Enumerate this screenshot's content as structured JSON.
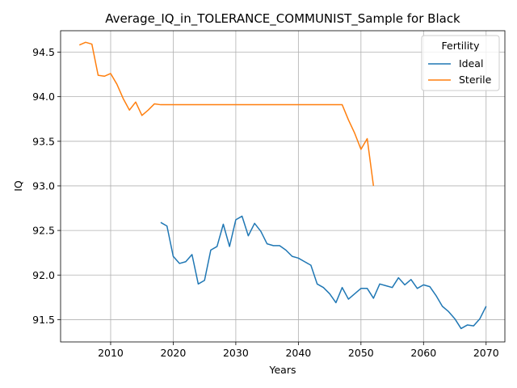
{
  "chart_data": {
    "type": "line",
    "title": "Average_IQ_in_TOLERANCE_COMMUNIST_Sample for Black",
    "xlabel": "Years",
    "ylabel": "IQ",
    "xlim": [
      2002,
      2073
    ],
    "ylim": [
      91.25,
      94.74
    ],
    "xticks": [
      2010,
      2020,
      2030,
      2040,
      2050,
      2060,
      2070
    ],
    "xtick_labels": [
      "2010",
      "2020",
      "2030",
      "2040",
      "2050",
      "2060",
      "2070"
    ],
    "yticks": [
      91.5,
      92.0,
      92.5,
      93.0,
      93.5,
      94.0,
      94.5
    ],
    "ytick_labels": [
      "91.5",
      "92.0",
      "92.5",
      "93.0",
      "93.5",
      "94.0",
      "94.5"
    ],
    "grid": true,
    "legend": {
      "title": "Fertility",
      "placement": "top-right"
    },
    "series": [
      {
        "name": "Ideal",
        "color": "#1f77b4",
        "x": [
          2018,
          2019,
          2020,
          2021,
          2022,
          2023,
          2024,
          2025,
          2026,
          2027,
          2028,
          2029,
          2030,
          2031,
          2032,
          2033,
          2034,
          2035,
          2036,
          2037,
          2038,
          2039,
          2040,
          2041,
          2042,
          2043,
          2044,
          2045,
          2046,
          2047,
          2048,
          2049,
          2050,
          2051,
          2052,
          2053,
          2054,
          2055,
          2056,
          2057,
          2058,
          2059,
          2060,
          2061,
          2062,
          2063,
          2064,
          2065,
          2066,
          2067,
          2068,
          2069,
          2070
        ],
        "y": [
          92.59,
          92.55,
          92.21,
          92.13,
          92.15,
          92.23,
          91.9,
          91.94,
          92.28,
          92.32,
          92.57,
          92.32,
          92.62,
          92.66,
          92.44,
          92.58,
          92.49,
          92.35,
          92.33,
          92.33,
          92.28,
          92.21,
          92.19,
          92.15,
          92.11,
          91.9,
          91.86,
          91.79,
          91.69,
          91.86,
          91.73,
          91.79,
          91.85,
          91.85,
          91.74,
          91.9,
          91.88,
          91.86,
          91.97,
          91.89,
          91.95,
          91.85,
          91.89,
          91.87,
          91.77,
          91.65,
          91.59,
          91.51,
          91.4,
          91.44,
          91.43,
          91.51,
          91.65
        ]
      },
      {
        "name": "Sterile",
        "color": "#ff7f0e",
        "x": [
          2005,
          2006,
          2007,
          2008,
          2009,
          2010,
          2011,
          2012,
          2013,
          2014,
          2015,
          2016,
          2017,
          2018,
          2019,
          2020,
          2021,
          2022,
          2023,
          2024,
          2025,
          2026,
          2027,
          2028,
          2029,
          2030,
          2031,
          2032,
          2033,
          2034,
          2035,
          2036,
          2037,
          2038,
          2039,
          2040,
          2041,
          2042,
          2043,
          2044,
          2045,
          2046,
          2047,
          2048,
          2049,
          2050,
          2051,
          2052
        ],
        "y": [
          94.58,
          94.61,
          94.59,
          94.24,
          94.23,
          94.26,
          94.14,
          93.98,
          93.85,
          93.94,
          93.79,
          93.85,
          93.92,
          93.91,
          93.91,
          93.91,
          93.91,
          93.91,
          93.91,
          93.91,
          93.91,
          93.91,
          93.91,
          93.91,
          93.91,
          93.91,
          93.91,
          93.91,
          93.91,
          93.91,
          93.91,
          93.91,
          93.91,
          93.91,
          93.91,
          93.91,
          93.91,
          93.91,
          93.91,
          93.91,
          93.91,
          93.91,
          93.91,
          93.74,
          93.59,
          93.41,
          93.53,
          93.0
        ]
      }
    ]
  }
}
